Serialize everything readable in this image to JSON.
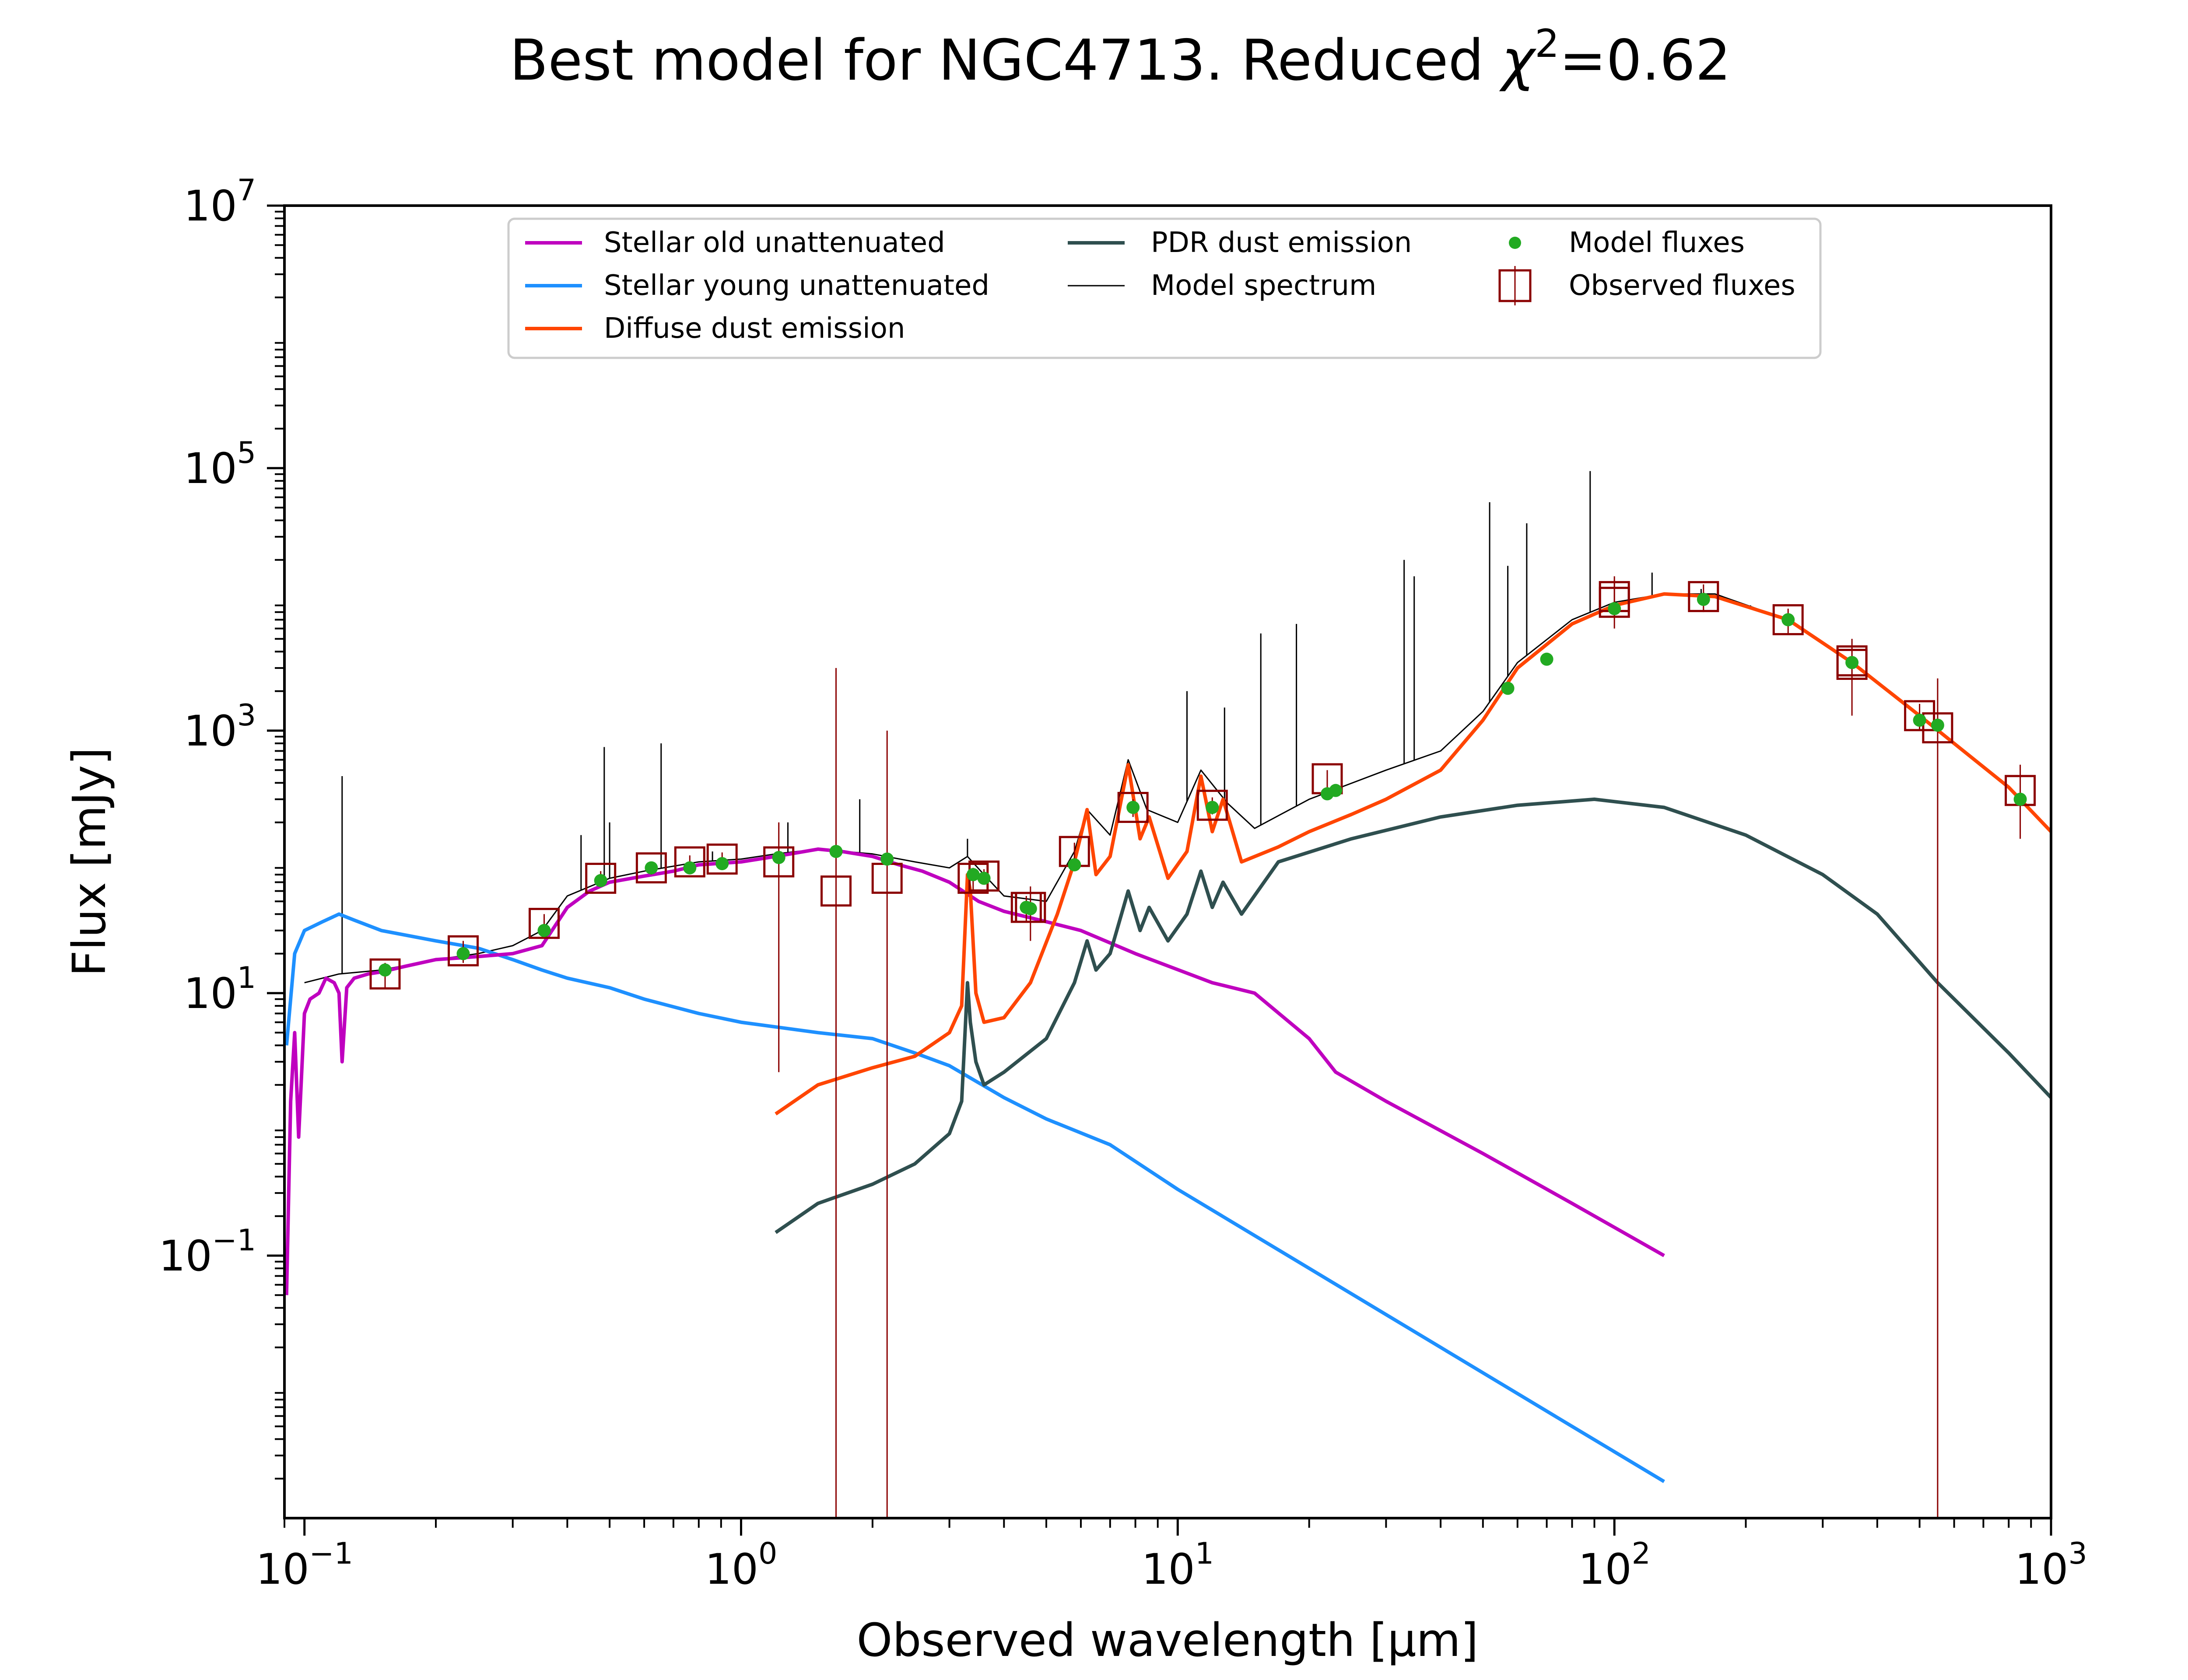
{
  "chart_data": {
    "type": "line",
    "title_prefix": "Best model for NGC4713. Reduced ",
    "title_chi": "χ",
    "title_chi_exp": "2",
    "title_suffix": "=0.62",
    "xlabel": "Observed wavelength [μm]",
    "ylabel": "Flux [mJy]",
    "x_scale": "log",
    "y_scale": "log",
    "xlim": [
      0.09,
      1000
    ],
    "ylim": [
      0.001,
      10000000
    ],
    "grid": false,
    "legend_position": "top-center",
    "x_ticks": [
      {
        "value": 0.1,
        "base": "10",
        "exp": "−1"
      },
      {
        "value": 1,
        "base": "10",
        "exp": "0"
      },
      {
        "value": 10,
        "base": "10",
        "exp": "1"
      },
      {
        "value": 100,
        "base": "10",
        "exp": "2"
      },
      {
        "value": 1000,
        "base": "10",
        "exp": "3"
      }
    ],
    "y_ticks": [
      {
        "value": 0.1,
        "base": "10",
        "exp": "−1"
      },
      {
        "value": 10,
        "base": "10",
        "exp": "1"
      },
      {
        "value": 1000,
        "base": "10",
        "exp": "3"
      },
      {
        "value": 100000,
        "base": "10",
        "exp": "5"
      },
      {
        "value": 10000000,
        "base": "10",
        "exp": "7"
      }
    ],
    "series": [
      {
        "name": "Stellar old unattenuated",
        "color": "#bf00bf",
        "points": [
          [
            0.091,
            0.05
          ],
          [
            0.093,
            1.5
          ],
          [
            0.095,
            5
          ],
          [
            0.097,
            0.8
          ],
          [
            0.1,
            7
          ],
          [
            0.103,
            9
          ],
          [
            0.108,
            10
          ],
          [
            0.112,
            13
          ],
          [
            0.117,
            12
          ],
          [
            0.12,
            10
          ],
          [
            0.122,
            3
          ],
          [
            0.125,
            11
          ],
          [
            0.13,
            13
          ],
          [
            0.14,
            14
          ],
          [
            0.15,
            14.5
          ],
          [
            0.17,
            16
          ],
          [
            0.2,
            18
          ],
          [
            0.25,
            19
          ],
          [
            0.3,
            20
          ],
          [
            0.35,
            23
          ],
          [
            0.4,
            45
          ],
          [
            0.45,
            60
          ],
          [
            0.5,
            70
          ],
          [
            0.6,
            78
          ],
          [
            0.7,
            85
          ],
          [
            0.8,
            95
          ],
          [
            1.0,
            100
          ],
          [
            1.2,
            110
          ],
          [
            1.5,
            125
          ],
          [
            1.7,
            120
          ],
          [
            2.0,
            110
          ],
          [
            2.3,
            95
          ],
          [
            2.6,
            85
          ],
          [
            3.0,
            70
          ],
          [
            3.5,
            50
          ],
          [
            4.0,
            42
          ],
          [
            5.0,
            35
          ],
          [
            6.0,
            30
          ],
          [
            8.0,
            20
          ],
          [
            12.0,
            12
          ],
          [
            15.0,
            10
          ],
          [
            20.0,
            4.5
          ],
          [
            23.0,
            2.5
          ],
          [
            30.0,
            1.5
          ],
          [
            50.0,
            0.6
          ],
          [
            80.0,
            0.25
          ],
          [
            130.0,
            0.1
          ]
        ]
      },
      {
        "name": "Stellar young unattenuated",
        "color": "#1e90ff",
        "points": [
          [
            0.091,
            4
          ],
          [
            0.095,
            20
          ],
          [
            0.1,
            30
          ],
          [
            0.11,
            35
          ],
          [
            0.12,
            40
          ],
          [
            0.13,
            36
          ],
          [
            0.15,
            30
          ],
          [
            0.2,
            25
          ],
          [
            0.25,
            22
          ],
          [
            0.3,
            18
          ],
          [
            0.35,
            15
          ],
          [
            0.4,
            13
          ],
          [
            0.5,
            11
          ],
          [
            0.6,
            9
          ],
          [
            0.8,
            7
          ],
          [
            1.0,
            6
          ],
          [
            1.5,
            5
          ],
          [
            2.0,
            4.5
          ],
          [
            2.5,
            3.5
          ],
          [
            3.0,
            2.8
          ],
          [
            4.0,
            1.6
          ],
          [
            5.0,
            1.1
          ],
          [
            7.0,
            0.7
          ],
          [
            10.0,
            0.32
          ],
          [
            20.0,
            0.08
          ],
          [
            40.0,
            0.02
          ],
          [
            80.0,
            0.005
          ],
          [
            130.0,
            0.0019
          ]
        ]
      },
      {
        "name": "Diffuse dust emission",
        "color": "#ff4500",
        "points": [
          [
            1.2,
            1.2
          ],
          [
            1.5,
            2.0
          ],
          [
            2.0,
            2.7
          ],
          [
            2.5,
            3.3
          ],
          [
            3.0,
            5
          ],
          [
            3.2,
            8
          ],
          [
            3.3,
            80
          ],
          [
            3.35,
            60
          ],
          [
            3.45,
            10
          ],
          [
            3.6,
            6
          ],
          [
            4.0,
            6.5
          ],
          [
            4.6,
            12
          ],
          [
            5.3,
            40
          ],
          [
            5.8,
            100
          ],
          [
            6.2,
            250
          ],
          [
            6.5,
            80
          ],
          [
            7.0,
            110
          ],
          [
            7.7,
            550
          ],
          [
            8.2,
            150
          ],
          [
            8.6,
            220
          ],
          [
            9.5,
            75
          ],
          [
            10.5,
            120
          ],
          [
            11.3,
            450
          ],
          [
            12.0,
            170
          ],
          [
            12.7,
            300
          ],
          [
            14.0,
            100
          ],
          [
            17.0,
            130
          ],
          [
            20.0,
            170
          ],
          [
            25.0,
            230
          ],
          [
            30.0,
            300
          ],
          [
            40.0,
            500
          ],
          [
            50.0,
            1200
          ],
          [
            60.0,
            3000
          ],
          [
            80.0,
            6500
          ],
          [
            100.0,
            9000
          ],
          [
            130.0,
            11000
          ],
          [
            170.0,
            10500
          ],
          [
            250.0,
            7000
          ],
          [
            350.0,
            3300
          ],
          [
            500.0,
            1300
          ],
          [
            800.0,
            370
          ],
          [
            1000.0,
            170
          ]
        ]
      },
      {
        "name": "PDR dust emission",
        "color": "#2f4f4f",
        "points": [
          [
            1.2,
            0.15
          ],
          [
            1.5,
            0.25
          ],
          [
            2.0,
            0.35
          ],
          [
            2.5,
            0.5
          ],
          [
            3.0,
            0.85
          ],
          [
            3.2,
            1.5
          ],
          [
            3.3,
            12
          ],
          [
            3.35,
            6
          ],
          [
            3.45,
            3
          ],
          [
            3.6,
            2
          ],
          [
            4.0,
            2.5
          ],
          [
            5.0,
            4.5
          ],
          [
            5.8,
            12
          ],
          [
            6.2,
            25
          ],
          [
            6.5,
            15
          ],
          [
            7.0,
            20
          ],
          [
            7.7,
            60
          ],
          [
            8.2,
            30
          ],
          [
            8.6,
            45
          ],
          [
            9.5,
            25
          ],
          [
            10.5,
            40
          ],
          [
            11.3,
            85
          ],
          [
            12.0,
            45
          ],
          [
            12.7,
            70
          ],
          [
            14.0,
            40
          ],
          [
            17.0,
            100
          ],
          [
            25.0,
            150
          ],
          [
            40.0,
            220
          ],
          [
            60.0,
            270
          ],
          [
            90.0,
            300
          ],
          [
            130.0,
            260
          ],
          [
            200.0,
            160
          ],
          [
            300.0,
            80
          ],
          [
            400.0,
            40
          ],
          [
            550.0,
            12
          ],
          [
            800.0,
            3.5
          ],
          [
            1000.0,
            1.6
          ]
        ]
      },
      {
        "name": "Model spectrum",
        "color": "#000000",
        "points": [
          [
            0.1,
            12
          ],
          [
            0.12,
            14
          ],
          [
            0.15,
            15
          ],
          [
            0.2,
            18
          ],
          [
            0.25,
            20
          ],
          [
            0.3,
            23
          ],
          [
            0.35,
            30
          ],
          [
            0.4,
            55
          ],
          [
            0.5,
            75
          ],
          [
            0.6,
            85
          ],
          [
            0.8,
            100
          ],
          [
            1.0,
            105
          ],
          [
            1.2,
            115
          ],
          [
            1.5,
            125
          ],
          [
            2.0,
            115
          ],
          [
            2.5,
            100
          ],
          [
            3.0,
            90
          ],
          [
            3.3,
            110
          ],
          [
            3.6,
            80
          ],
          [
            4.0,
            55
          ],
          [
            5.0,
            50
          ],
          [
            5.8,
            120
          ],
          [
            6.2,
            250
          ],
          [
            7.0,
            160
          ],
          [
            7.7,
            600
          ],
          [
            8.5,
            250
          ],
          [
            10.0,
            200
          ],
          [
            11.3,
            500
          ],
          [
            13.0,
            280
          ],
          [
            15.0,
            180
          ],
          [
            20.0,
            300
          ],
          [
            30.0,
            500
          ],
          [
            40.0,
            700
          ],
          [
            50.0,
            1400
          ],
          [
            60.0,
            3300
          ],
          [
            80.0,
            7000
          ],
          [
            100.0,
            9500
          ],
          [
            130.0,
            11000
          ],
          [
            170.0,
            11000
          ],
          [
            250.0,
            7000
          ],
          [
            350.0,
            3300
          ],
          [
            500.0,
            1300
          ],
          [
            800.0,
            370
          ],
          [
            1000.0,
            170
          ]
        ],
        "lines": [
          [
            0.122,
            450
          ],
          [
            0.43,
            160
          ],
          [
            0.486,
            750
          ],
          [
            0.5,
            200
          ],
          [
            0.656,
            800
          ],
          [
            0.86,
            120
          ],
          [
            1.28,
            200
          ],
          [
            1.87,
            300
          ],
          [
            3.3,
            150
          ],
          [
            10.5,
            2000
          ],
          [
            12.8,
            1500
          ],
          [
            15.5,
            5500
          ],
          [
            18.7,
            6500
          ],
          [
            33.0,
            20000
          ],
          [
            34.8,
            15000
          ],
          [
            51.8,
            55000
          ],
          [
            57.0,
            18000
          ],
          [
            63.0,
            38000
          ],
          [
            88.0,
            95000
          ],
          [
            122.0,
            16000
          ],
          [
            158.0,
            12000
          ],
          [
            205.0,
            9000
          ]
        ]
      }
    ],
    "model_fluxes": {
      "name": "Model fluxes",
      "color": "#22aa22",
      "points": [
        [
          0.153,
          15
        ],
        [
          0.231,
          20
        ],
        [
          0.354,
          30
        ],
        [
          0.477,
          72
        ],
        [
          0.623,
          90
        ],
        [
          0.763,
          90
        ],
        [
          0.905,
          97
        ],
        [
          1.22,
          108
        ],
        [
          1.65,
          120
        ],
        [
          2.16,
          105
        ],
        [
          3.4,
          80
        ],
        [
          3.6,
          75
        ],
        [
          4.5,
          45
        ],
        [
          4.6,
          44
        ],
        [
          5.8,
          95
        ],
        [
          7.9,
          260
        ],
        [
          12.0,
          260
        ],
        [
          22.0,
          330
        ],
        [
          23.0,
          350
        ],
        [
          57.0,
          2100
        ],
        [
          70.0,
          3500
        ],
        [
          100.0,
          8500
        ],
        [
          160.0,
          10000
        ],
        [
          250.0,
          7000
        ],
        [
          350.0,
          3300
        ],
        [
          500.0,
          1200
        ],
        [
          550.0,
          1100
        ],
        [
          850.0,
          300
        ]
      ]
    },
    "observed_fluxes": {
      "name": "Observed fluxes",
      "color": "#8b0000",
      "points": [
        {
          "x": 0.153,
          "y": 14,
          "lo": 11,
          "hi": 17
        },
        {
          "x": 0.231,
          "y": 21,
          "lo": 17,
          "hi": 25
        },
        {
          "x": 0.354,
          "y": 34,
          "lo": 28,
          "hi": 40
        },
        {
          "x": 0.477,
          "y": 75,
          "lo": 65,
          "hi": 85
        },
        {
          "x": 0.623,
          "y": 90,
          "lo": 80,
          "hi": 100
        },
        {
          "x": 0.763,
          "y": 100,
          "lo": 88,
          "hi": 112
        },
        {
          "x": 0.905,
          "y": 105,
          "lo": 92,
          "hi": 118
        },
        {
          "x": 1.22,
          "y": 100,
          "lo": 2.5,
          "hi": 200
        },
        {
          "x": 1.65,
          "y": 60,
          "lo": 0.001,
          "hi": 3000
        },
        {
          "x": 2.16,
          "y": 75,
          "lo": 0.001,
          "hi": 1000
        },
        {
          "x": 3.4,
          "y": 75,
          "lo": 60,
          "hi": 90
        },
        {
          "x": 3.6,
          "y": 78,
          "lo": 68,
          "hi": 88
        },
        {
          "x": 4.5,
          "y": 45,
          "lo": 35,
          "hi": 55
        },
        {
          "x": 4.6,
          "y": 45,
          "lo": 25,
          "hi": 65
        },
        {
          "x": 5.8,
          "y": 120,
          "lo": 100,
          "hi": 140
        },
        {
          "x": 7.9,
          "y": 260,
          "lo": 220,
          "hi": 300
        },
        {
          "x": 12.0,
          "y": 270,
          "lo": 230,
          "hi": 310
        },
        {
          "x": 22.0,
          "y": 430,
          "lo": 360,
          "hi": 500
        },
        {
          "x": 100.0,
          "y": 9500,
          "lo": 6000,
          "hi": 15000
        },
        {
          "x": 100.0,
          "y": 10500,
          "lo": 7500,
          "hi": 14000
        },
        {
          "x": 160.0,
          "y": 10500,
          "lo": 8000,
          "hi": 13000
        },
        {
          "x": 250.0,
          "y": 7000,
          "lo": 5500,
          "hi": 8500
        },
        {
          "x": 350.0,
          "y": 3200,
          "lo": 1300,
          "hi": 5000
        },
        {
          "x": 350.0,
          "y": 3400,
          "lo": 2500,
          "hi": 4300
        },
        {
          "x": 500.0,
          "y": 1300,
          "lo": 1000,
          "hi": 1600
        },
        {
          "x": 550.0,
          "y": 1050,
          "lo": 0.001,
          "hi": 2500
        },
        {
          "x": 850.0,
          "y": 350,
          "lo": 150,
          "hi": 550
        }
      ]
    }
  }
}
